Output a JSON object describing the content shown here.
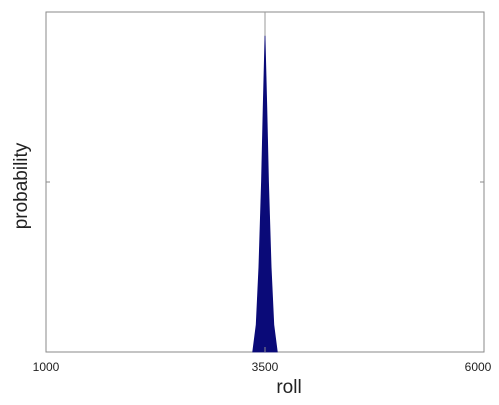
{
  "chart_data": {
    "type": "area",
    "title": "",
    "xlabel": "roll",
    "ylabel": "probability",
    "xlim": [
      1000,
      6000
    ],
    "ylim": [
      0,
      1
    ],
    "x_ticks": [
      "1000",
      "3500",
      "6000"
    ],
    "grid": false,
    "legend": "none",
    "series": [
      {
        "x": [
          3360,
          3400,
          3430,
          3460,
          3480,
          3500,
          3520,
          3540,
          3570,
          3600,
          3640
        ],
        "values": [
          0.0,
          0.08,
          0.25,
          0.5,
          0.72,
          0.93,
          0.72,
          0.5,
          0.25,
          0.08,
          0.0
        ],
        "color": "#0a0a78"
      }
    ],
    "peak_line": {
      "x": 3500,
      "color": "#999999"
    }
  }
}
